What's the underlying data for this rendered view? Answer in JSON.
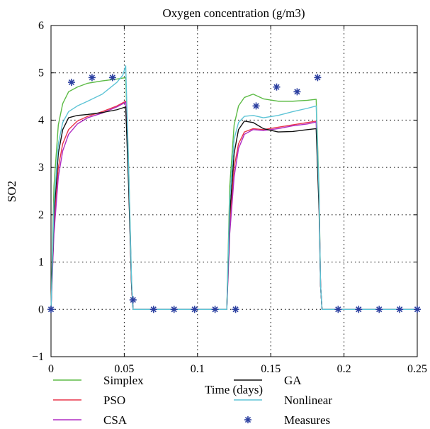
{
  "chart_data": {
    "type": "line",
    "title": "Oxygen concentration (g/m3)",
    "xlabel": "Time (days)",
    "ylabel": "SO2",
    "xlim": [
      0,
      0.25
    ],
    "ylim": [
      -1,
      6
    ],
    "x_ticks": [
      0,
      0.05,
      0.1,
      0.15,
      0.2,
      0.25
    ],
    "x_tick_labels": [
      "0",
      "0.05",
      "0.1",
      "0.15",
      "0.2",
      "0.25"
    ],
    "y_ticks": [
      -1,
      0,
      1,
      2,
      3,
      4,
      5,
      6
    ],
    "y_tick_labels": [
      "−1",
      "0",
      "1",
      "2",
      "3",
      "4",
      "5",
      "6"
    ],
    "grid": true,
    "legend_position": "bottom",
    "series": [
      {
        "name": "Simplex",
        "color": "#5dbb46",
        "marker": "line",
        "x": [
          0,
          0.002,
          0.005,
          0.008,
          0.012,
          0.018,
          0.025,
          0.035,
          0.045,
          0.051,
          0.053,
          0.055,
          0.056,
          0.08,
          0.1,
          0.12,
          0.122,
          0.125,
          0.128,
          0.132,
          0.138,
          0.145,
          0.155,
          0.165,
          0.175,
          0.181,
          0.183,
          0.184,
          0.185,
          0.2,
          0.25
        ],
        "y": [
          0,
          2.6,
          3.9,
          4.35,
          4.6,
          4.7,
          4.78,
          4.83,
          4.87,
          4.9,
          3.0,
          0.5,
          0,
          0,
          0,
          0,
          2.6,
          3.9,
          4.3,
          4.48,
          4.55,
          4.45,
          4.4,
          4.4,
          4.42,
          4.44,
          2.5,
          0.5,
          0,
          0,
          0
        ]
      },
      {
        "name": "PSO",
        "color": "#e8354a",
        "marker": "line",
        "x": [
          0,
          0.002,
          0.005,
          0.008,
          0.012,
          0.018,
          0.025,
          0.035,
          0.045,
          0.051,
          0.053,
          0.055,
          0.056,
          0.08,
          0.1,
          0.12,
          0.122,
          0.125,
          0.128,
          0.132,
          0.138,
          0.145,
          0.155,
          0.165,
          0.175,
          0.181,
          0.183,
          0.184,
          0.185,
          0.2,
          0.25
        ],
        "y": [
          0,
          1.8,
          3.0,
          3.5,
          3.8,
          3.98,
          4.08,
          4.18,
          4.3,
          4.4,
          2.8,
          0.5,
          0,
          0,
          0,
          0,
          1.8,
          3.0,
          3.5,
          3.75,
          3.82,
          3.8,
          3.85,
          3.9,
          3.95,
          3.98,
          2.3,
          0.5,
          0,
          0,
          0
        ]
      },
      {
        "name": "CSA",
        "color": "#b02cc4",
        "marker": "line",
        "x": [
          0,
          0.002,
          0.005,
          0.008,
          0.012,
          0.018,
          0.025,
          0.035,
          0.045,
          0.051,
          0.053,
          0.055,
          0.056,
          0.08,
          0.1,
          0.12,
          0.122,
          0.125,
          0.128,
          0.132,
          0.138,
          0.145,
          0.155,
          0.165,
          0.175,
          0.181,
          0.183,
          0.184,
          0.185,
          0.2,
          0.25
        ],
        "y": [
          0,
          1.6,
          2.8,
          3.35,
          3.7,
          3.92,
          4.05,
          4.15,
          4.28,
          4.38,
          2.7,
          0.5,
          0,
          0,
          0,
          0,
          1.6,
          2.8,
          3.4,
          3.7,
          3.8,
          3.78,
          3.82,
          3.88,
          3.92,
          3.96,
          2.2,
          0.5,
          0,
          0,
          0
        ]
      },
      {
        "name": "GA",
        "color": "#111111",
        "marker": "line",
        "x": [
          0,
          0.002,
          0.005,
          0.008,
          0.012,
          0.018,
          0.025,
          0.035,
          0.045,
          0.051,
          0.053,
          0.055,
          0.056,
          0.08,
          0.1,
          0.12,
          0.122,
          0.125,
          0.128,
          0.132,
          0.138,
          0.145,
          0.155,
          0.165,
          0.175,
          0.181,
          0.183,
          0.184,
          0.185,
          0.2,
          0.25
        ],
        "y": [
          0,
          2.0,
          3.3,
          3.8,
          4.05,
          4.1,
          4.12,
          4.16,
          4.22,
          4.28,
          2.6,
          0.5,
          0,
          0,
          0,
          0,
          2.0,
          3.3,
          3.8,
          3.98,
          3.95,
          3.82,
          3.75,
          3.76,
          3.8,
          3.82,
          2.1,
          0.5,
          0,
          0,
          0
        ]
      },
      {
        "name": "Nonlinear",
        "color": "#5ec4d6",
        "marker": "line",
        "x": [
          0,
          0.002,
          0.005,
          0.008,
          0.012,
          0.018,
          0.025,
          0.035,
          0.045,
          0.049,
          0.051,
          0.053,
          0.055,
          0.056,
          0.08,
          0.1,
          0.12,
          0.122,
          0.125,
          0.128,
          0.132,
          0.138,
          0.145,
          0.155,
          0.165,
          0.175,
          0.181,
          0.183,
          0.184,
          0.185,
          0.2,
          0.25
        ],
        "y": [
          0,
          2.2,
          3.5,
          3.95,
          4.18,
          4.3,
          4.4,
          4.55,
          4.8,
          4.95,
          5.15,
          3.0,
          0.6,
          0,
          0,
          0,
          0,
          2.3,
          3.6,
          3.95,
          4.08,
          4.1,
          4.05,
          4.1,
          4.18,
          4.25,
          4.3,
          2.4,
          0.5,
          0,
          0,
          0
        ]
      },
      {
        "name": "Measures",
        "color": "#2b3fa0",
        "marker": "star",
        "x": [
          0,
          0.014,
          0.028,
          0.042,
          0.056,
          0.07,
          0.084,
          0.098,
          0.112,
          0.126,
          0.14,
          0.154,
          0.168,
          0.182,
          0.196,
          0.21,
          0.224,
          0.238,
          0.252
        ],
        "y": [
          0,
          4.8,
          4.9,
          4.9,
          0.2,
          0,
          0,
          0,
          0,
          0,
          4.3,
          4.7,
          4.6,
          4.9,
          0,
          0,
          0,
          0,
          0
        ]
      }
    ]
  }
}
